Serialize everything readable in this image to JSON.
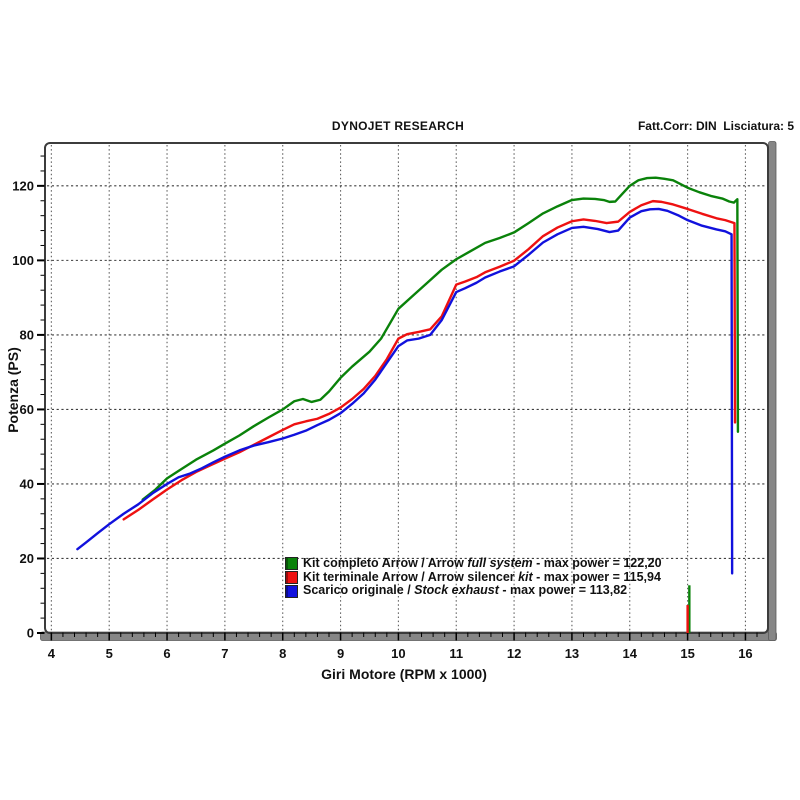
{
  "header": {
    "title": "DYNOJET RESEARCH",
    "correction": "Fatt.Corr: DIN  Lisciatura: 5"
  },
  "legend": {
    "items": [
      {
        "pre": "Kit completo Arrow / Arrow ",
        "italic": "full system",
        "post": " - max power = 122,20",
        "color": "#0a820a"
      },
      {
        "pre": "Kit terminale Arrow / Arrow silencer ",
        "italic": "kit",
        "post": " - max power = 115,94",
        "color": "#ee1111"
      },
      {
        "pre": "Scarico originale / ",
        "italic": "Stock exhaust",
        "post": " - max power = 113,82",
        "color": "#1111dd"
      }
    ]
  },
  "chart_data": {
    "type": "line",
    "title": "DYNOJET RESEARCH",
    "xlabel": "Giri Motore (RPM x 1000)",
    "ylabel": "Potenza (PS)",
    "xlim": [
      3.89,
      16.39
    ],
    "ylim": [
      0,
      131.5
    ],
    "x_ticks": [
      4,
      5,
      6,
      7,
      8,
      9,
      10,
      11,
      12,
      13,
      14,
      15,
      16
    ],
    "y_ticks": [
      0,
      20,
      40,
      60,
      80,
      100,
      120
    ],
    "x_minor_step": 0.2,
    "y_minor_step": 4,
    "grid": true,
    "legend_position": "bottom-center-inside",
    "series": [
      {
        "name": "Kit completo Arrow / Arrow full system",
        "max_power": "122,20",
        "color": "#0a820a",
        "points": [
          [
            5.58,
            35.8
          ],
          [
            5.8,
            38.5
          ],
          [
            6.0,
            41.5
          ],
          [
            6.2,
            43.5
          ],
          [
            6.5,
            46.5
          ],
          [
            6.8,
            49
          ],
          [
            7.0,
            50.8
          ],
          [
            7.25,
            53
          ],
          [
            7.5,
            55.5
          ],
          [
            7.75,
            57.8
          ],
          [
            8.0,
            60
          ],
          [
            8.2,
            62.2
          ],
          [
            8.35,
            62.8
          ],
          [
            8.5,
            62.0
          ],
          [
            8.65,
            62.6
          ],
          [
            8.8,
            64.8
          ],
          [
            9.0,
            68.5
          ],
          [
            9.2,
            71.5
          ],
          [
            9.5,
            75.5
          ],
          [
            9.7,
            79
          ],
          [
            10.0,
            87
          ],
          [
            10.25,
            90.5
          ],
          [
            10.5,
            94
          ],
          [
            10.75,
            97.5
          ],
          [
            11.0,
            100.3
          ],
          [
            11.25,
            102.5
          ],
          [
            11.5,
            104.7
          ],
          [
            11.75,
            106
          ],
          [
            12.0,
            107.5
          ],
          [
            12.25,
            110
          ],
          [
            12.5,
            112.6
          ],
          [
            12.75,
            114.5
          ],
          [
            13.0,
            116.2
          ],
          [
            13.2,
            116.6
          ],
          [
            13.4,
            116.5
          ],
          [
            13.55,
            116.2
          ],
          [
            13.65,
            115.7
          ],
          [
            13.75,
            115.8
          ],
          [
            13.85,
            117.5
          ],
          [
            14.0,
            120
          ],
          [
            14.15,
            121.5
          ],
          [
            14.3,
            122.1
          ],
          [
            14.45,
            122.2
          ],
          [
            14.6,
            121.9
          ],
          [
            14.75,
            121.5
          ],
          [
            15.0,
            119.5
          ],
          [
            15.2,
            118.3
          ],
          [
            15.4,
            117.3
          ],
          [
            15.6,
            116.6
          ],
          [
            15.72,
            115.8
          ],
          [
            15.8,
            115.5
          ],
          [
            15.86,
            116.4
          ],
          [
            15.87,
            54
          ]
        ]
      },
      {
        "name": "Kit terminale Arrow / Arrow silencer kit",
        "max_power": "115,94",
        "color": "#ee1111",
        "points": [
          [
            5.25,
            30.5
          ],
          [
            5.5,
            33
          ],
          [
            5.75,
            35.8
          ],
          [
            6.0,
            38.5
          ],
          [
            6.25,
            41
          ],
          [
            6.5,
            43.2
          ],
          [
            6.75,
            45
          ],
          [
            7.0,
            46.8
          ],
          [
            7.25,
            48.5
          ],
          [
            7.5,
            50.5
          ],
          [
            7.75,
            52.5
          ],
          [
            8.0,
            54.5
          ],
          [
            8.2,
            56
          ],
          [
            8.4,
            56.8
          ],
          [
            8.6,
            57.5
          ],
          [
            8.8,
            58.8
          ],
          [
            9.0,
            60.5
          ],
          [
            9.2,
            62.8
          ],
          [
            9.4,
            65.5
          ],
          [
            9.6,
            69
          ],
          [
            9.8,
            73.5
          ],
          [
            10.0,
            79
          ],
          [
            10.15,
            80.2
          ],
          [
            10.35,
            80.8
          ],
          [
            10.55,
            81.5
          ],
          [
            10.75,
            85
          ],
          [
            11.0,
            93.5
          ],
          [
            11.15,
            94.3
          ],
          [
            11.35,
            95.5
          ],
          [
            11.5,
            96.8
          ],
          [
            11.75,
            98.3
          ],
          [
            12.0,
            99.9
          ],
          [
            12.25,
            103
          ],
          [
            12.5,
            106.5
          ],
          [
            12.75,
            108.8
          ],
          [
            13.0,
            110.5
          ],
          [
            13.2,
            111
          ],
          [
            13.4,
            110.6
          ],
          [
            13.6,
            110
          ],
          [
            13.8,
            110.4
          ],
          [
            14.0,
            113
          ],
          [
            14.2,
            114.8
          ],
          [
            14.4,
            115.9
          ],
          [
            14.55,
            115.7
          ],
          [
            14.75,
            115
          ],
          [
            15.0,
            113.8
          ],
          [
            15.25,
            112.5
          ],
          [
            15.5,
            111.3
          ],
          [
            15.65,
            110.8
          ],
          [
            15.81,
            110
          ],
          [
            15.82,
            56.5
          ]
        ]
      },
      {
        "name": "Scarico originale / Stock exhaust",
        "max_power": "113,82",
        "color": "#1111dd",
        "points": [
          [
            4.45,
            22.5
          ],
          [
            4.6,
            24.3
          ],
          [
            4.8,
            26.8
          ],
          [
            5.0,
            29.2
          ],
          [
            5.25,
            32
          ],
          [
            5.5,
            34.5
          ],
          [
            5.75,
            37.5
          ],
          [
            6.0,
            40
          ],
          [
            6.2,
            41.8
          ],
          [
            6.4,
            42.8
          ],
          [
            6.6,
            44.2
          ],
          [
            6.8,
            45.8
          ],
          [
            7.0,
            47.3
          ],
          [
            7.25,
            49
          ],
          [
            7.5,
            50.3
          ],
          [
            7.75,
            51.2
          ],
          [
            8.0,
            52.2
          ],
          [
            8.2,
            53.2
          ],
          [
            8.4,
            54.3
          ],
          [
            8.6,
            55.8
          ],
          [
            8.8,
            57.2
          ],
          [
            9.0,
            59
          ],
          [
            9.2,
            61.5
          ],
          [
            9.4,
            64.3
          ],
          [
            9.6,
            68
          ],
          [
            9.8,
            72.5
          ],
          [
            10.0,
            77
          ],
          [
            10.15,
            78.5
          ],
          [
            10.35,
            79
          ],
          [
            10.55,
            80
          ],
          [
            10.75,
            84
          ],
          [
            11.0,
            91.5
          ],
          [
            11.15,
            92.5
          ],
          [
            11.35,
            94
          ],
          [
            11.5,
            95.4
          ],
          [
            11.75,
            97
          ],
          [
            12.0,
            98.4
          ],
          [
            12.25,
            101.5
          ],
          [
            12.5,
            104.8
          ],
          [
            12.75,
            107
          ],
          [
            13.0,
            108.7
          ],
          [
            13.2,
            109
          ],
          [
            13.45,
            108.4
          ],
          [
            13.65,
            107.6
          ],
          [
            13.8,
            108
          ],
          [
            14.0,
            111.5
          ],
          [
            14.2,
            113.2
          ],
          [
            14.35,
            113.7
          ],
          [
            14.5,
            113.8
          ],
          [
            14.65,
            113.3
          ],
          [
            14.85,
            112
          ],
          [
            15.0,
            110.8
          ],
          [
            15.25,
            109.3
          ],
          [
            15.5,
            108.3
          ],
          [
            15.65,
            107.8
          ],
          [
            15.76,
            107
          ],
          [
            15.77,
            16
          ]
        ]
      }
    ],
    "artifacts": [
      {
        "color": "#0a820a",
        "points": [
          [
            15.03,
            0
          ],
          [
            15.03,
            12.8
          ]
        ]
      },
      {
        "color": "#ee1111",
        "points": [
          [
            15.0,
            0
          ],
          [
            15.0,
            7.5
          ]
        ]
      }
    ]
  }
}
